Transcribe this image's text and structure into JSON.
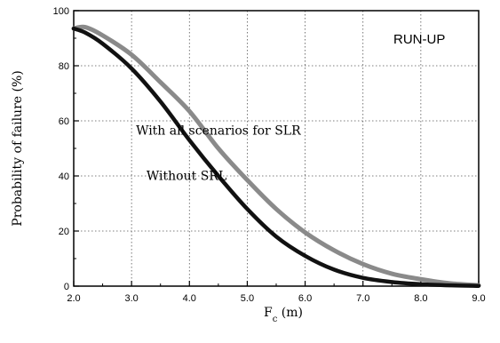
{
  "chart_data": {
    "type": "line",
    "title": "RUN-UP",
    "xlabel": "F",
    "xlabel_sub": "c",
    "xlabel_unit": " (m)",
    "ylabel": "Probability of failure (%)",
    "xlim": [
      2.0,
      9.0
    ],
    "ylim": [
      0,
      100
    ],
    "x_ticks": [
      2.0,
      3.0,
      4.0,
      5.0,
      6.0,
      7.0,
      8.0,
      9.0
    ],
    "x_tick_labels": [
      "2.0",
      "3.0",
      "4.0",
      "5.0",
      "6.0",
      "7.0",
      "8.0",
      "9.0"
    ],
    "y_ticks": [
      0,
      20,
      40,
      60,
      80,
      100
    ],
    "y_tick_labels": [
      "0",
      "20",
      "40",
      "60",
      "80",
      "100"
    ],
    "grid": true,
    "series": [
      {
        "name": "With all scenarios for SLR",
        "color": "#8a8a8a",
        "x": [
          2.0,
          2.2,
          2.5,
          3.0,
          3.5,
          4.0,
          4.5,
          5.0,
          5.5,
          6.0,
          6.5,
          7.0,
          7.5,
          8.0,
          8.5,
          9.0
        ],
        "y": [
          93.5,
          94.0,
          91.0,
          84.0,
          74.0,
          63.5,
          50.0,
          38.5,
          28.0,
          19.5,
          13.0,
          8.0,
          4.5,
          2.5,
          1.0,
          0.3
        ]
      },
      {
        "name": "Without SRL",
        "color": "#111111",
        "x": [
          2.0,
          2.2,
          2.5,
          3.0,
          3.5,
          4.0,
          4.5,
          5.0,
          5.5,
          6.0,
          6.5,
          7.0,
          7.5,
          8.0,
          8.5,
          9.0
        ],
        "y": [
          93.5,
          92.0,
          88.0,
          79.0,
          67.0,
          53.0,
          40.0,
          28.0,
          18.0,
          11.0,
          6.0,
          3.0,
          1.5,
          0.7,
          0.3,
          0.1
        ]
      }
    ],
    "annotations": [
      {
        "text": "With all scenarios for SLR",
        "x": 4.5,
        "y": 55
      },
      {
        "text": "Without SRL",
        "x": 3.95,
        "y": 38.5
      }
    ]
  }
}
